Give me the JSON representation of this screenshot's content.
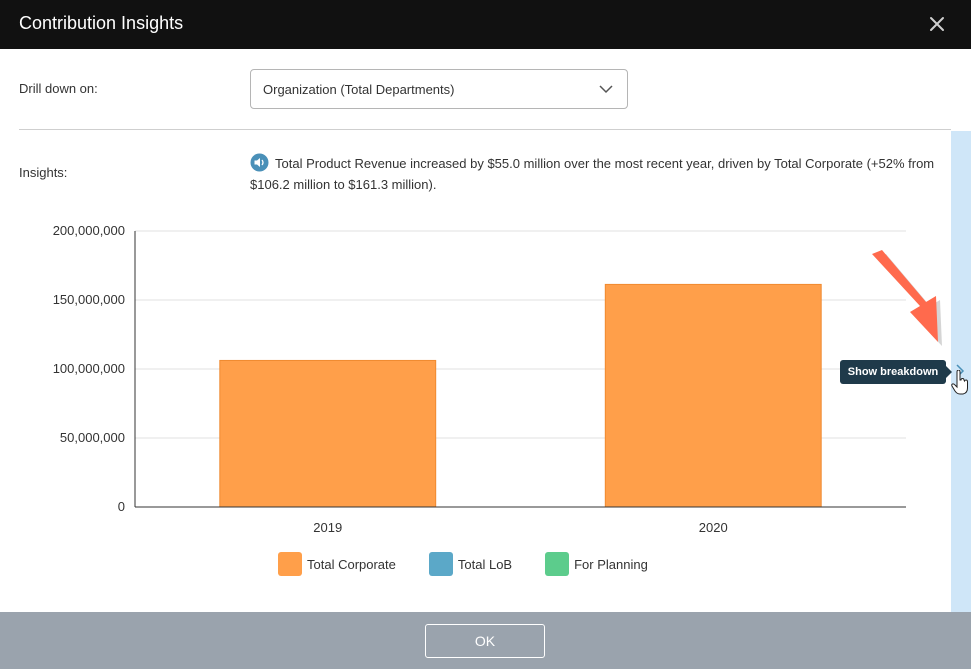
{
  "dialog": {
    "title": "Contribution Insights"
  },
  "drill": {
    "label": "Drill down on:",
    "selected": "Organization (Total Departments)"
  },
  "insights": {
    "label": "Insights:",
    "text": "Total Product Revenue increased by $55.0 million over the most recent year, driven by Total Corporate (+52% from $106.2 million to $161.3 million)."
  },
  "chart_data": {
    "type": "bar",
    "categories": [
      "2019",
      "2020"
    ],
    "series": [
      {
        "name": "Total Corporate",
        "values": [
          106200000,
          161300000
        ],
        "color": "#ff9f4a"
      },
      {
        "name": "Total LoB",
        "values": [
          0,
          0
        ],
        "color": "#5ba8c8"
      },
      {
        "name": "For Planning",
        "values": [
          0,
          0
        ],
        "color": "#5ccc8c"
      }
    ],
    "yticks": [
      "0",
      "50,000,000",
      "100,000,000",
      "150,000,000",
      "200,000,000"
    ],
    "ylim": [
      0,
      200000000
    ],
    "grid": true,
    "legend": "bottom"
  },
  "side": {
    "tooltip": "Show breakdown"
  },
  "footer": {
    "ok_label": "OK"
  },
  "icons": {
    "close": "close-icon",
    "chevron": "chevron-down-icon",
    "speaker": "speaker-icon"
  }
}
